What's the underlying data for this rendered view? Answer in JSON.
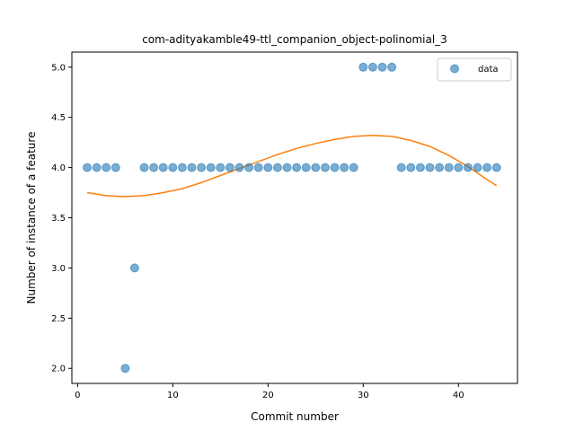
{
  "chart_data": {
    "type": "scatter",
    "title": "com-adityakamble49-ttl_companion_object-polinomial_3",
    "xlabel": "Commit number",
    "ylabel": "Number of instance of a feature",
    "xlim": [
      -0.6,
      46.2
    ],
    "ylim": [
      1.85,
      5.15
    ],
    "x_ticks": [
      0,
      10,
      20,
      30,
      40
    ],
    "y_ticks": [
      2.0,
      2.5,
      3.0,
      3.5,
      4.0,
      4.5,
      5.0
    ],
    "grid": false,
    "legend_position": "top-right",
    "series": [
      {
        "name": "data",
        "kind": "scatter",
        "color": "#1f77b4",
        "x": [
          1,
          2,
          3,
          4,
          5,
          6,
          7,
          8,
          9,
          10,
          11,
          12,
          13,
          14,
          15,
          16,
          17,
          18,
          19,
          20,
          21,
          22,
          23,
          24,
          25,
          26,
          27,
          28,
          29,
          30,
          31,
          32,
          33,
          34,
          35,
          36,
          37,
          38,
          39,
          40,
          41,
          42,
          43,
          44
        ],
        "y": [
          4,
          4,
          4,
          4,
          2,
          3,
          4,
          4,
          4,
          4,
          4,
          4,
          4,
          4,
          4,
          4,
          4,
          4,
          4,
          4,
          4,
          4,
          4,
          4,
          4,
          4,
          4,
          4,
          4,
          5,
          5,
          5,
          5,
          4,
          4,
          4,
          4,
          4,
          4,
          4,
          4,
          4,
          4,
          4
        ]
      },
      {
        "kind": "line",
        "color": "#ff7f0e",
        "x": [
          1,
          3,
          5,
          7,
          9,
          11,
          13,
          15,
          17,
          19,
          21,
          23,
          25,
          27,
          29,
          31,
          33,
          35,
          37,
          39,
          41,
          43,
          44
        ],
        "y": [
          3.75,
          3.72,
          3.71,
          3.72,
          3.75,
          3.79,
          3.85,
          3.92,
          3.99,
          4.06,
          4.13,
          4.19,
          4.24,
          4.28,
          4.31,
          4.32,
          4.31,
          4.27,
          4.21,
          4.12,
          4.01,
          3.88,
          3.82
        ]
      }
    ]
  }
}
